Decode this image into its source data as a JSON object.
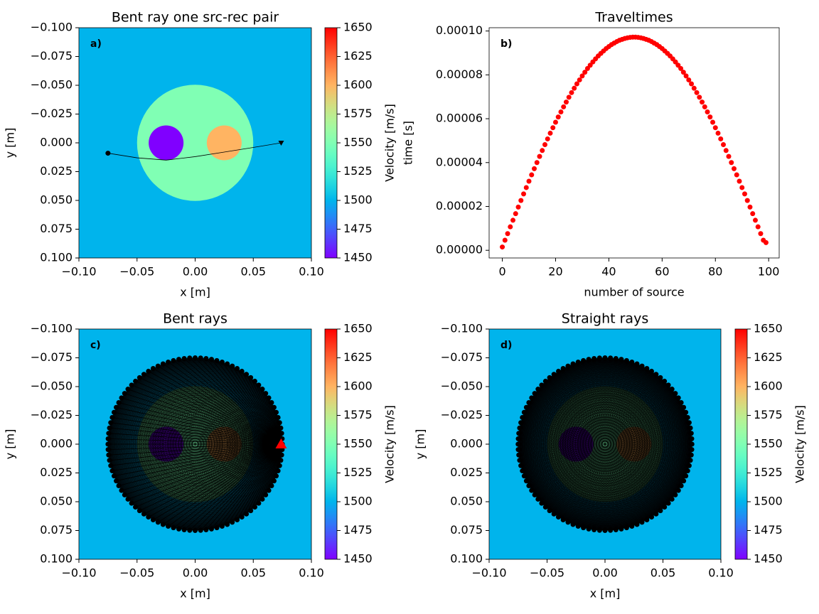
{
  "chart_data": [
    {
      "type": "image",
      "title": "Bent ray one src-rec pair",
      "annotation": "a)",
      "xlabel": "x [m]",
      "ylabel": "y [m]",
      "xlim": [
        -0.1,
        0.1
      ],
      "ylim": [
        0.1,
        -0.1
      ],
      "xticks": [
        {
          "value": -0.1,
          "label": "−0.10"
        },
        {
          "value": -0.05,
          "label": "−0.05"
        },
        {
          "value": 0,
          "label": "0.00"
        },
        {
          "value": 0.05,
          "label": "0.05"
        },
        {
          "value": 0.1,
          "label": "0.10"
        }
      ],
      "yticks": [
        {
          "value": -0.1,
          "label": "−0.100"
        },
        {
          "value": -0.075,
          "label": "−0.075"
        },
        {
          "value": -0.05,
          "label": "−0.050"
        },
        {
          "value": -0.025,
          "label": "−0.025"
        },
        {
          "value": 0,
          "label": "0.000"
        },
        {
          "value": 0.025,
          "label": "0.025"
        },
        {
          "value": 0.05,
          "label": "0.050"
        },
        {
          "value": 0.075,
          "label": "0.075"
        },
        {
          "value": 0.1,
          "label": "0.100"
        }
      ],
      "model": {
        "background": 1500,
        "circles": [
          {
            "x": 0,
            "y": 0,
            "r": 0.05,
            "value": 1550
          },
          {
            "x": -0.025,
            "y": 0,
            "r": 0.015,
            "value": 1450
          },
          {
            "x": 0.025,
            "y": 0,
            "r": 0.015,
            "value": 1600
          }
        ]
      },
      "ray": {
        "x": [
          -0.075,
          -0.05,
          -0.025,
          0,
          0.025,
          0.05,
          0.074
        ],
        "y": [
          0.009,
          0.013,
          0.015,
          0.012,
          0.008,
          0.004,
          0.0
        ]
      },
      "colorbar": {
        "label": "Velocity [m/s]",
        "lim": [
          1450,
          1650
        ],
        "ticks": [
          1450,
          1475,
          1500,
          1525,
          1550,
          1575,
          1600,
          1625,
          1650
        ]
      }
    },
    {
      "type": "scatter",
      "title": "Traveltimes",
      "annotation": "b)",
      "xlabel": "number of source",
      "ylabel": "time [s]",
      "color": "#ff0000",
      "xlim": [
        -4.95,
        103.95
      ],
      "ylim": [
        -3.5e-06,
        0.0001015
      ],
      "xticks": [
        0,
        20,
        40,
        60,
        80,
        100
      ],
      "yticks": [
        {
          "value": 0,
          "label": "0.00000"
        },
        {
          "value": 2e-05,
          "label": "0.00002"
        },
        {
          "value": 4e-05,
          "label": "0.00004"
        },
        {
          "value": 6e-05,
          "label": "0.00006"
        },
        {
          "value": 8e-05,
          "label": "0.00008"
        },
        {
          "value": 0.0001,
          "label": "0.00010"
        }
      ],
      "x": [
        0,
        1,
        2,
        3,
        4,
        5,
        6,
        7,
        8,
        9,
        10,
        11,
        12,
        13,
        14,
        15,
        16,
        17,
        18,
        19,
        20,
        21,
        22,
        23,
        24,
        25,
        26,
        27,
        28,
        29,
        30,
        31,
        32,
        33,
        34,
        35,
        36,
        37,
        38,
        39,
        40,
        41,
        42,
        43,
        44,
        45,
        46,
        47,
        48,
        49,
        50,
        51,
        52,
        53,
        54,
        55,
        56,
        57,
        58,
        59,
        60,
        61,
        62,
        63,
        64,
        65,
        66,
        67,
        68,
        69,
        70,
        71,
        72,
        73,
        74,
        75,
        76,
        77,
        78,
        79,
        80,
        81,
        82,
        83,
        84,
        85,
        86,
        87,
        88,
        89,
        90,
        91,
        92,
        93,
        94,
        95,
        96,
        97,
        98,
        99
      ],
      "values": [
        1.5e-06,
        4.6e-06,
        7.6e-06,
        1.07e-05,
        1.37e-05,
        1.67e-05,
        1.97e-05,
        2.27e-05,
        2.57e-05,
        2.86e-05,
        3.15e-05,
        3.44e-05,
        3.72e-05,
        4e-05,
        4.28e-05,
        4.55e-05,
        4.82e-05,
        5.08e-05,
        5.34e-05,
        5.59e-05,
        5.84e-05,
        6.08e-05,
        6.31e-05,
        6.54e-05,
        6.76e-05,
        6.98e-05,
        7.19e-05,
        7.39e-05,
        7.59e-05,
        7.77e-05,
        7.95e-05,
        8.12e-05,
        8.29e-05,
        8.44e-05,
        8.59e-05,
        8.73e-05,
        8.86e-05,
        8.98e-05,
        9.09e-05,
        9.2e-05,
        9.29e-05,
        9.38e-05,
        9.45e-05,
        9.52e-05,
        9.58e-05,
        9.62e-05,
        9.66e-05,
        9.69e-05,
        9.71e-05,
        9.72e-05,
        9.72e-05,
        9.71e-05,
        9.69e-05,
        9.66e-05,
        9.62e-05,
        9.58e-05,
        9.52e-05,
        9.45e-05,
        9.38e-05,
        9.29e-05,
        9.2e-05,
        9.09e-05,
        8.98e-05,
        8.86e-05,
        8.73e-05,
        8.59e-05,
        8.44e-05,
        8.29e-05,
        8.12e-05,
        7.95e-05,
        7.77e-05,
        7.59e-05,
        7.39e-05,
        7.19e-05,
        6.98e-05,
        6.76e-05,
        6.54e-05,
        6.31e-05,
        6.08e-05,
        5.84e-05,
        5.59e-05,
        5.34e-05,
        5.08e-05,
        4.82e-05,
        4.55e-05,
        4.28e-05,
        4e-05,
        3.72e-05,
        3.44e-05,
        3.15e-05,
        2.86e-05,
        2.57e-05,
        2.27e-05,
        1.97e-05,
        1.67e-05,
        1.37e-05,
        1.07e-05,
        7.6e-06,
        4.6e-06,
        3.5e-06
      ]
    },
    {
      "type": "image",
      "title": "Bent rays",
      "annotation": "c)",
      "xlabel": "x [m]",
      "ylabel": "y [m]",
      "xlim": [
        -0.1,
        0.1
      ],
      "ylim": [
        0.1,
        -0.1
      ],
      "xticks": [
        {
          "value": -0.1,
          "label": "−0.10"
        },
        {
          "value": -0.05,
          "label": "−0.05"
        },
        {
          "value": 0,
          "label": "0.00"
        },
        {
          "value": 0.05,
          "label": "0.05"
        },
        {
          "value": 0.1,
          "label": "0.10"
        }
      ],
      "yticks": [
        {
          "value": -0.1,
          "label": "−0.100"
        },
        {
          "value": -0.075,
          "label": "−0.075"
        },
        {
          "value": -0.05,
          "label": "−0.050"
        },
        {
          "value": -0.025,
          "label": "−0.025"
        },
        {
          "value": 0,
          "label": "0.000"
        },
        {
          "value": 0.025,
          "label": "0.025"
        },
        {
          "value": 0.05,
          "label": "0.050"
        },
        {
          "value": 0.075,
          "label": "0.075"
        },
        {
          "value": 0.1,
          "label": "0.100"
        }
      ],
      "model": {
        "background": 1500,
        "circles": [
          {
            "x": 0,
            "y": 0,
            "r": 0.05,
            "value": 1550
          },
          {
            "x": -0.025,
            "y": 0,
            "r": 0.015,
            "value": 1450
          },
          {
            "x": 0.025,
            "y": 0,
            "r": 0.015,
            "value": 1600
          }
        ]
      },
      "sources": {
        "radius": 0.075,
        "count": 100
      },
      "receiver": {
        "x": 0.074,
        "y": 0
      },
      "colorbar": {
        "label": "Velocity [m/s]",
        "lim": [
          1450,
          1650
        ],
        "ticks": [
          1450,
          1475,
          1500,
          1525,
          1550,
          1575,
          1600,
          1625,
          1650
        ]
      }
    },
    {
      "type": "image",
      "title": "Straight rays",
      "annotation": "d)",
      "xlabel": "x [m]",
      "ylabel": "y [m]",
      "xlim": [
        -0.1,
        0.1
      ],
      "ylim": [
        0.1,
        -0.1
      ],
      "xticks": [
        {
          "value": -0.1,
          "label": "−0.10"
        },
        {
          "value": -0.05,
          "label": "−0.05"
        },
        {
          "value": 0,
          "label": "0.00"
        },
        {
          "value": 0.05,
          "label": "0.05"
        },
        {
          "value": 0.1,
          "label": "0.10"
        }
      ],
      "yticks": [
        {
          "value": -0.1,
          "label": "−0.100"
        },
        {
          "value": -0.075,
          "label": "−0.075"
        },
        {
          "value": -0.05,
          "label": "−0.050"
        },
        {
          "value": -0.025,
          "label": "−0.025"
        },
        {
          "value": 0,
          "label": "0.000"
        },
        {
          "value": 0.025,
          "label": "0.025"
        },
        {
          "value": 0.05,
          "label": "0.050"
        },
        {
          "value": 0.075,
          "label": "0.075"
        },
        {
          "value": 0.1,
          "label": "0.100"
        }
      ],
      "model": {
        "background": 1500,
        "circles": [
          {
            "x": 0,
            "y": 0,
            "r": 0.05,
            "value": 1550
          },
          {
            "x": -0.025,
            "y": 0,
            "r": 0.015,
            "value": 1450
          },
          {
            "x": 0.025,
            "y": 0,
            "r": 0.015,
            "value": 1600
          }
        ]
      },
      "sources": {
        "radius": 0.075,
        "count": 100
      },
      "colorbar": {
        "label": "Velocity [m/s]",
        "lim": [
          1450,
          1650
        ],
        "ticks": [
          1450,
          1475,
          1500,
          1525,
          1550,
          1575,
          1600,
          1625,
          1650
        ]
      }
    }
  ]
}
